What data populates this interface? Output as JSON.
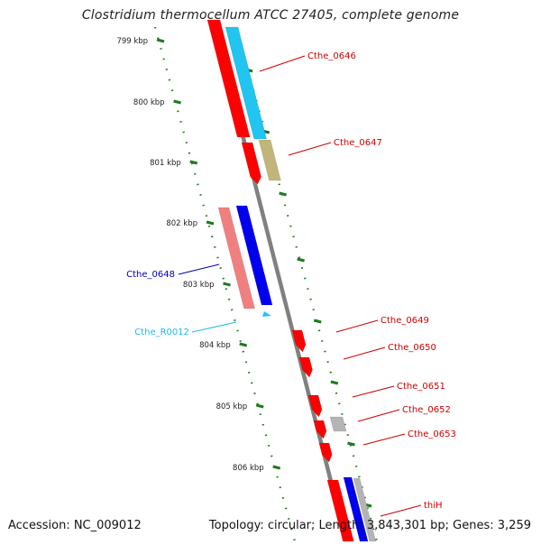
{
  "title": "Clostridium thermocellum ATCC 27405, complete genome",
  "footer": {
    "accession": "Accession: NC_009012",
    "summary": "Topology: circular; Length: 3,843,301 bp; Genes: 3,259"
  },
  "colors": {
    "cds_red": "#ff0000",
    "cds_pink": "#f08080",
    "cds_blue": "#0000ee",
    "cds_cyan": "#22c4f0",
    "cds_olive": "#c2b57a",
    "cds_gray": "#b4b4b4",
    "backbone": "#808080",
    "scale_green": "#1e7a1e",
    "label_red": "#cc0000",
    "label_blue": "#0000bb",
    "label_cyan": "#22b8e8"
  },
  "kbp_ticks": [
    "799 kbp",
    "800 kbp",
    "801 kbp",
    "802 kbp",
    "803 kbp",
    "804 kbp",
    "805 kbp",
    "806 kbp"
  ],
  "gene_labels": [
    {
      "name": "Cthe_0646",
      "color": "label_red"
    },
    {
      "name": "Cthe_0647",
      "color": "label_red"
    },
    {
      "name": "Cthe_0648",
      "color": "label_blue"
    },
    {
      "name": "Cthe_R0012",
      "color": "label_cyan"
    },
    {
      "name": "Cthe_0649",
      "color": "label_red"
    },
    {
      "name": "Cthe_0650",
      "color": "label_red"
    },
    {
      "name": "Cthe_0651",
      "color": "label_red"
    },
    {
      "name": "Cthe_0652",
      "color": "label_red"
    },
    {
      "name": "Cthe_0653",
      "color": "label_red"
    },
    {
      "name": "thiH",
      "color": "label_red"
    }
  ]
}
